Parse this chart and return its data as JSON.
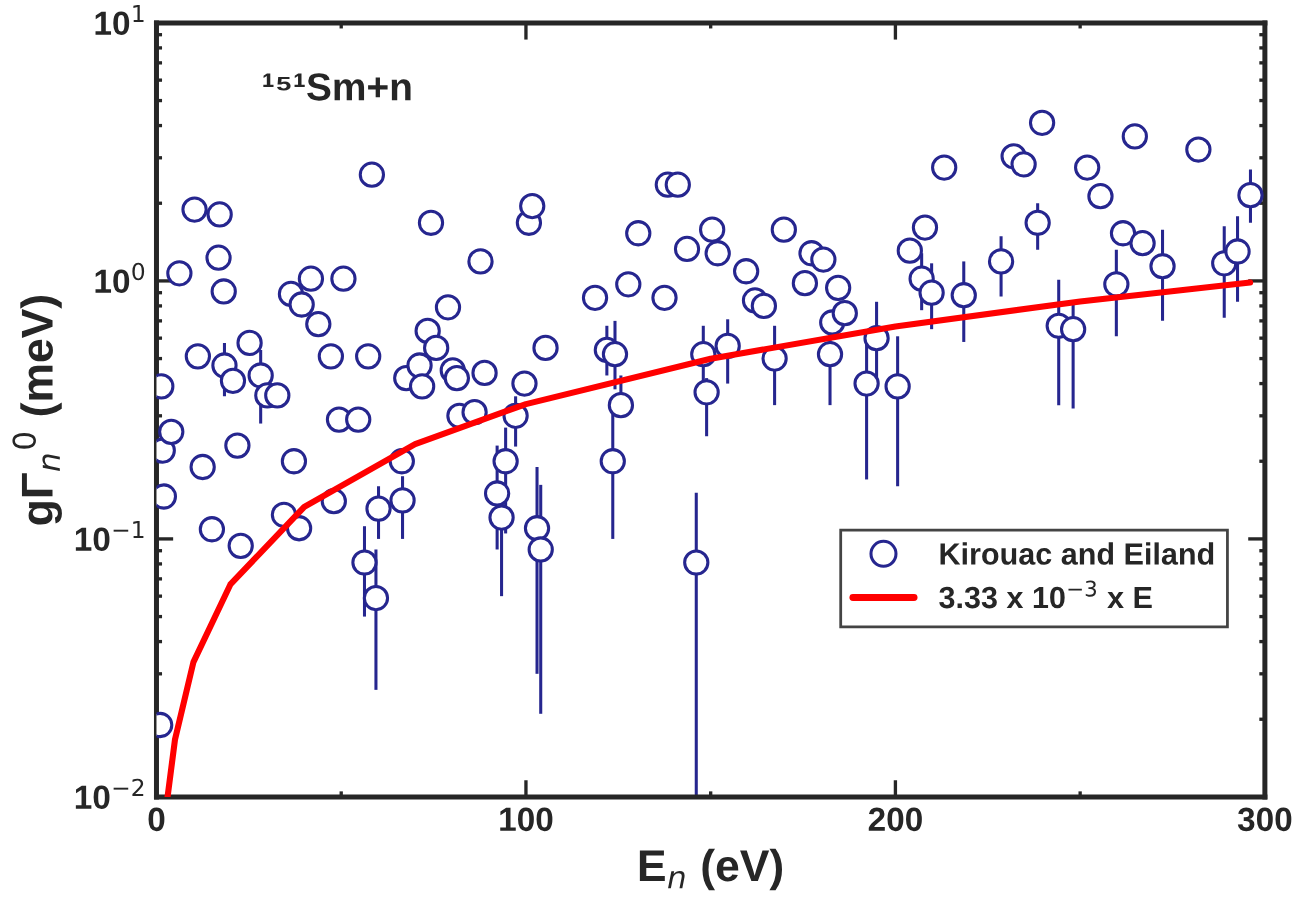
{
  "chart_data": {
    "type": "scatter",
    "xlabel": "E$_{n}$ (eV)",
    "ylabel": "gΓ$_{n}$$^{0}$ (meV)",
    "annotations": [
      "¹⁵¹Sm+n"
    ],
    "xlim": [
      0,
      300
    ],
    "xticks": [
      0,
      100,
      200,
      300
    ],
    "ylim": [
      0.01,
      10
    ],
    "log": true,
    "yticks": [
      {
        "value": 0.01,
        "label": "10$^{−2}$"
      },
      {
        "value": 0.1,
        "label": "10$^{−1}$"
      },
      {
        "value": 1,
        "label": "10$^{0}$"
      },
      {
        "value": 10,
        "label": "10$^{1}$"
      }
    ],
    "grid": false,
    "legend": "bottom right",
    "series": [
      {
        "name": "Kirouac and Eiland",
        "marker": "circle",
        "color": "#26268f",
        "x": [
          1,
          1.3,
          1.7,
          2,
          4,
          6.2,
          10.3,
          11.2,
          12.5,
          15,
          16.8,
          17.1,
          18.2,
          18.4,
          20.7,
          21.9,
          22.8,
          25.2,
          28.2,
          30,
          32.7,
          34.5,
          36.4,
          37.2,
          38.6,
          39.3,
          41.8,
          43.8,
          47.2,
          48,
          49.4,
          50.6,
          54.6,
          56.3,
          57.3,
          58.3,
          59.4,
          60.1,
          66.4,
          66.6,
          67.6,
          71.2,
          71.9,
          73.4,
          74.3,
          75.7,
          78.9,
          80.2,
          81.3,
          82,
          86.1,
          87.7,
          88.8,
          92.2,
          93.4,
          94.5,
          97.2,
          99.6,
          100.8,
          101.7,
          103,
          104,
          105.3,
          118.7,
          121.9,
          123.5,
          124.1,
          125.7,
          127.7,
          130.4,
          137.5,
          138.4,
          141.1,
          143.6,
          146.1,
          148,
          148.9,
          150.4,
          151.9,
          154.6,
          159.6,
          162,
          164.4,
          167.3,
          169.8,
          175.5,
          177.3,
          180.5,
          182.3,
          182.9,
          184.5,
          186.3,
          192.2,
          194.9,
          200.6,
          203.9,
          207.1,
          208,
          209.8,
          213.2,
          218.5,
          228.6,
          232,
          234.7,
          238.5,
          239.7,
          244.2,
          248.1,
          251.9,
          255.5,
          259.8,
          261.6,
          264.8,
          266.9,
          272.3,
          282,
          289,
          292.6,
          296.1
        ],
        "values": [
          0.019,
          0.39,
          0.22,
          0.146,
          0.26,
          1.07,
          1.89,
          0.51,
          0.19,
          0.109,
          1.23,
          1.81,
          0.91,
          0.47,
          0.41,
          0.23,
          0.094,
          0.575,
          0.43,
          0.36,
          0.36,
          0.124,
          0.89,
          0.2,
          0.11,
          0.81,
          1.02,
          0.68,
          0.51,
          0.14,
          0.29,
          1.02,
          0.29,
          0.081,
          0.51,
          2.58,
          0.059,
          0.131,
          0.2,
          0.141,
          0.42,
          0.47,
          0.39,
          0.64,
          1.68,
          0.55,
          0.79,
          0.45,
          0.42,
          0.3,
          0.31,
          1.19,
          0.44,
          0.15,
          0.121,
          0.2,
          0.3,
          0.4,
          1.68,
          1.95,
          0.11,
          0.091,
          0.55,
          0.86,
          0.54,
          0.2,
          0.52,
          0.33,
          0.97,
          1.53,
          0.86,
          2.36,
          2.36,
          1.33,
          0.081,
          0.52,
          0.37,
          1.58,
          1.28,
          0.56,
          1.09,
          0.84,
          0.8,
          0.5,
          1.58,
          0.98,
          1.28,
          1.21,
          0.52,
          0.69,
          0.94,
          0.75,
          0.4,
          0.6,
          0.39,
          1.31,
          1.02,
          1.61,
          0.9,
          2.75,
          0.88,
          1.19,
          3.04,
          2.83,
          1.68,
          4.1,
          0.67,
          0.65,
          2.75,
          2.13,
          0.97,
          1.53,
          3.63,
          1.4,
          1.14,
          3.23,
          1.17,
          1.3,
          2.15
        ],
        "errors": [
          null,
          null,
          null,
          null,
          null,
          null,
          null,
          null,
          null,
          null,
          null,
          null,
          null,
          [
            0.357,
            0.575
          ],
          null,
          null,
          null,
          null,
          [
            0.28,
            0.54
          ],
          null,
          null,
          null,
          null,
          null,
          null,
          null,
          null,
          null,
          null,
          null,
          null,
          null,
          null,
          [
            0.05,
            0.112
          ],
          null,
          null,
          [
            0.026,
            0.091
          ],
          [
            0.1,
            0.16
          ],
          null,
          [
            0.1,
            0.175
          ],
          null,
          null,
          null,
          null,
          null,
          null,
          null,
          null,
          null,
          null,
          null,
          null,
          null,
          [
            0.091,
            0.23
          ],
          [
            0.06,
            0.131
          ],
          [
            0.105,
            0.27
          ],
          [
            0.228,
            0.357
          ],
          null,
          null,
          null,
          [
            0.03,
            0.19
          ],
          [
            0.021,
            0.162
          ],
          null,
          null,
          [
            0.43,
            0.67
          ],
          [
            0.1,
            0.34
          ],
          [
            0.38,
            0.7
          ],
          [
            0.3,
            0.43
          ],
          null,
          null,
          null,
          null,
          null,
          null,
          [
            0.01,
            0.151
          ],
          [
            0.39,
            0.67
          ],
          [
            0.25,
            0.42
          ],
          null,
          null,
          [
            0.4,
            0.71
          ],
          null,
          null,
          null,
          [
            0.33,
            0.67
          ],
          null,
          null,
          null,
          null,
          [
            0.33,
            0.71
          ],
          null,
          null,
          null,
          [
            0.17,
            0.61
          ],
          [
            0.39,
            0.83
          ],
          [
            0.16,
            0.61
          ],
          null,
          [
            0.77,
            1.28
          ],
          null,
          [
            0.65,
            1.17
          ],
          null,
          [
            0.58,
            1.19
          ],
          [
            0.87,
            1.49
          ],
          null,
          null,
          [
            1.32,
            2.0
          ],
          null,
          [
            0.33,
            1.01
          ],
          [
            0.32,
            0.82
          ],
          null,
          null,
          [
            0.61,
            1.32
          ],
          null,
          null,
          null,
          [
            0.7,
            1.58
          ],
          null,
          [
            0.72,
            1.63
          ],
          [
            0.83,
            1.78
          ],
          [
            1.68,
            2.7
          ]
        ]
      },
      {
        "name": "3.33 x 10$^{−3}$ x E",
        "type": "line",
        "color": "#ff0000",
        "line_style": "solid",
        "x": [
          3,
          5,
          10,
          20,
          40,
          70,
          100,
          150,
          200,
          250,
          296
        ],
        "values": [
          0.01,
          0.01665,
          0.0333,
          0.0666,
          0.1332,
          0.2331,
          0.333,
          0.4995,
          0.666,
          0.8325,
          0.986
        ]
      }
    ]
  }
}
